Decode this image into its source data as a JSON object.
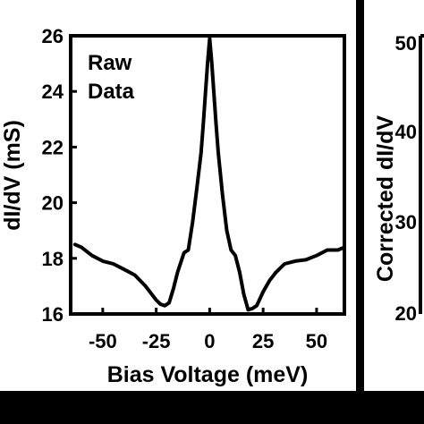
{
  "chart_data": [
    {
      "type": "line",
      "title": "",
      "annotation": [
        "Raw",
        "Data"
      ],
      "xlabel": "Bias Voltage (meV)",
      "ylabel": "dI/dV (mS)",
      "xlim": [
        -65,
        63
      ],
      "ylim": [
        16,
        26
      ],
      "xticks": [
        -50,
        -25,
        0,
        25,
        50
      ],
      "yticks": [
        16,
        18,
        20,
        22,
        24,
        26
      ],
      "grid": false,
      "legend": "none",
      "line_color": "#000000",
      "series": [
        {
          "x": [
            -63,
            -60,
            -55,
            -50,
            -45,
            -40,
            -35,
            -30,
            -27,
            -25,
            -23,
            -21,
            -19,
            -17,
            -15,
            -12,
            -10,
            -8,
            -6,
            -4,
            -3,
            -2,
            -1,
            0,
            1,
            2,
            3,
            4,
            6,
            8,
            10,
            12,
            14,
            16,
            18,
            20,
            22,
            25,
            28,
            31,
            35,
            40,
            45,
            50,
            55,
            60,
            63
          ],
          "y": [
            18.5,
            18.4,
            18.1,
            17.9,
            17.8,
            17.6,
            17.4,
            17.0,
            16.7,
            16.5,
            16.35,
            16.3,
            16.4,
            16.9,
            17.5,
            18.2,
            18.3,
            19.3,
            20.5,
            21.8,
            22.8,
            23.9,
            25.0,
            25.9,
            25.0,
            23.9,
            22.8,
            21.8,
            20.3,
            19.0,
            18.3,
            18.1,
            17.5,
            16.7,
            16.15,
            16.2,
            16.3,
            16.8,
            17.2,
            17.5,
            17.8,
            17.9,
            17.95,
            18.1,
            18.3,
            18.3,
            18.4
          ]
        }
      ]
    },
    {
      "type": "line",
      "title": "",
      "ylabel": "Corrected dI/dV",
      "yticks_visible": [
        "50",
        "40",
        "30",
        "20"
      ]
    }
  ]
}
